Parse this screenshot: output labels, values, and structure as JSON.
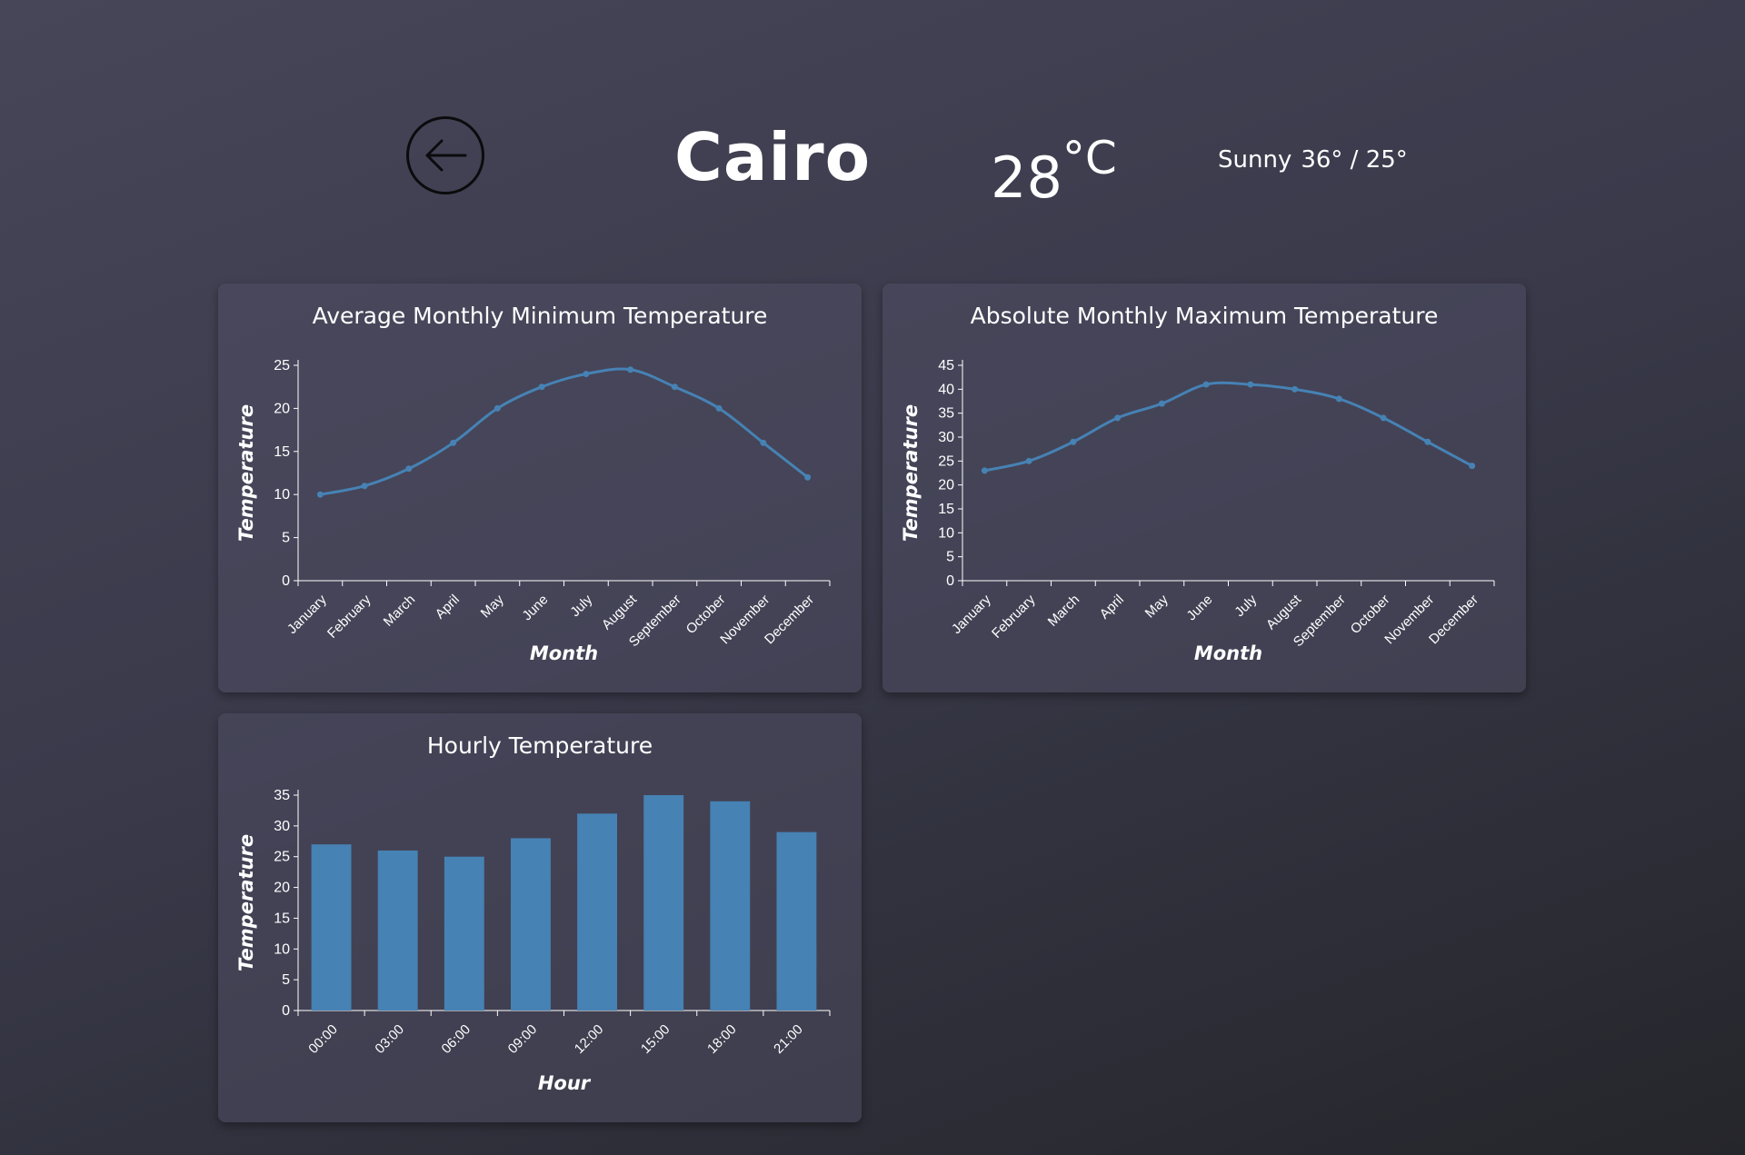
{
  "header": {
    "city": "Cairo",
    "current_temp": "28",
    "current_unit": "°C",
    "condition": "Sunny",
    "high_low": "36° / 25°"
  },
  "colors": {
    "accent": "#4682b4",
    "axis": "#ffffff",
    "background_top": "#474659",
    "background_bottom": "#25262b"
  },
  "icons": {
    "back": "arrow-left-icon"
  },
  "charts": [
    {
      "id": "min",
      "title": "Average Monthly Minimum Temperature",
      "chart_data": {
        "type": "line",
        "title": "Average Monthly Minimum Temperature",
        "xlabel": "Month",
        "ylabel": "Temperature",
        "categories": [
          "January",
          "February",
          "March",
          "April",
          "May",
          "June",
          "July",
          "August",
          "September",
          "October",
          "November",
          "December"
        ],
        "values": [
          10,
          11,
          13,
          16,
          20,
          22.5,
          24,
          24.5,
          22.5,
          20,
          16,
          12
        ],
        "ylim": [
          0,
          25
        ],
        "yticks": [
          0,
          5,
          10,
          15,
          20,
          25
        ],
        "grid": false,
        "legend": "none"
      }
    },
    {
      "id": "max",
      "title": "Absolute Monthly Maximum Temperature",
      "chart_data": {
        "type": "line",
        "title": "Absolute Monthly Maximum Temperature",
        "xlabel": "Month",
        "ylabel": "Temperature",
        "categories": [
          "January",
          "February",
          "March",
          "April",
          "May",
          "June",
          "July",
          "August",
          "September",
          "October",
          "November",
          "December"
        ],
        "values": [
          23,
          25,
          29,
          34,
          37,
          41,
          41,
          40,
          38,
          34,
          29,
          24
        ],
        "ylim": [
          0,
          45
        ],
        "yticks": [
          0,
          5,
          10,
          15,
          20,
          25,
          30,
          35,
          40,
          45
        ],
        "grid": false,
        "legend": "none"
      }
    },
    {
      "id": "hourly",
      "title": "Hourly Temperature",
      "chart_data": {
        "type": "bar",
        "title": "Hourly Temperature",
        "xlabel": "Hour",
        "ylabel": "Temperature",
        "categories": [
          "00:00",
          "03:00",
          "06:00",
          "09:00",
          "12:00",
          "15:00",
          "18:00",
          "21:00"
        ],
        "values": [
          27,
          26,
          25,
          28,
          32,
          35,
          34,
          29
        ],
        "ylim": [
          0,
          35
        ],
        "yticks": [
          0,
          5,
          10,
          15,
          20,
          25,
          30,
          35
        ],
        "grid": false,
        "legend": "none"
      }
    }
  ]
}
